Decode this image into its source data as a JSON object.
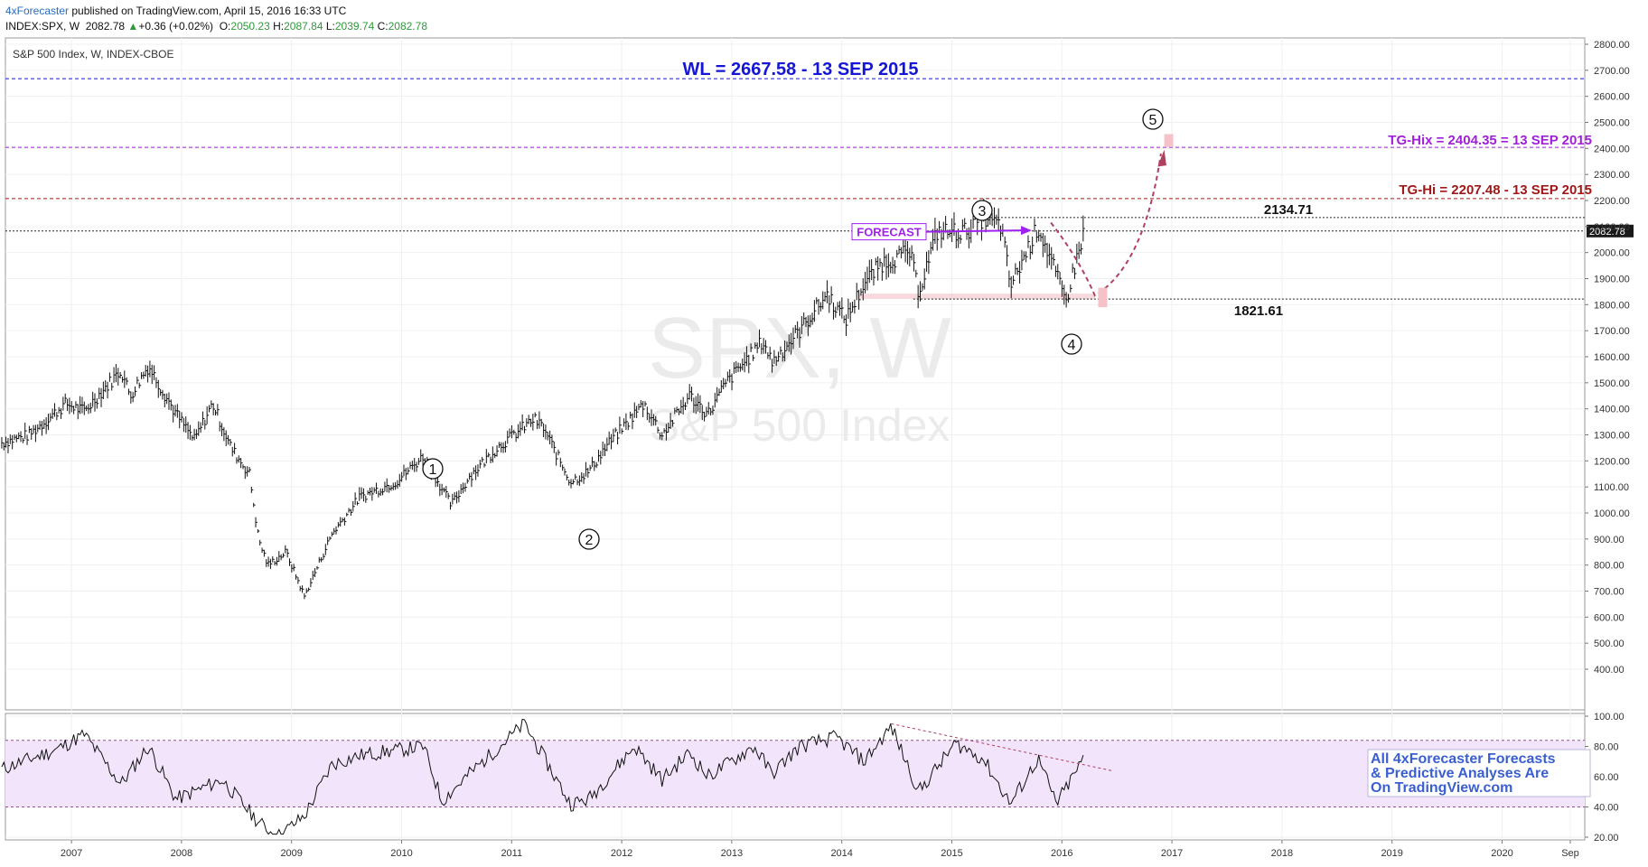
{
  "header": {
    "author": "4xForecaster",
    "published": " published on TradingView.com, April 15, 2016 16:33 UTC",
    "symbol": "INDEX:SPX, W",
    "last": "2082.78",
    "change_arrow": "▲",
    "change": "+0.36 (+0.02%)",
    "o_label": "O:",
    "o_value": "2050.23",
    "h_label": "H:",
    "h_value": "2087.84",
    "l_label": "L:",
    "l_value": "2039.74",
    "c_label": "C:",
    "c_value": "2082.78"
  },
  "legend_title": "S&P 500 Index, W, INDEX-CBOE",
  "watermark": {
    "symbol": "SPX, W",
    "name": "S&P 500 Index"
  },
  "colors": {
    "wl": "#1515d6",
    "tg_hix": "#a020d8",
    "tg_hi": "#a01818",
    "forecast": "#a020f0",
    "rsi_band": "#f2e5fb",
    "projection": "#b04060",
    "target_box": "#f4c2c8",
    "wave": "#111111",
    "promo": "#3a5fd0"
  },
  "levels": [
    {
      "key": "wl",
      "value": 2667.58,
      "label": "WL = 2667.58 - 13 SEP 2015"
    },
    {
      "key": "tg_hix",
      "value": 2404.35,
      "label": "TG-Hix = 2404.35 = 13 SEP 2015"
    },
    {
      "key": "tg_hi",
      "value": 2207.48,
      "label": "TG-Hi = 2207.48 - 13 SEP 2015"
    },
    {
      "key": "high",
      "value": 2134.71,
      "label": "2134.71"
    },
    {
      "key": "low",
      "value": 1821.61,
      "label": "1821.61"
    }
  ],
  "forecast_label": "FORECAST",
  "last_price_tag": "2082.78",
  "waves": [
    {
      "label": "1",
      "date": "2010-04",
      "price": 1219
    },
    {
      "label": "2",
      "date": "2011-10",
      "price": 1075
    },
    {
      "label": "3",
      "date": "2015-05",
      "price": 2134
    },
    {
      "label": "4",
      "date": "2016-02",
      "price": 1810
    },
    {
      "label": "5",
      "date": "2016-12",
      "price": 2450
    }
  ],
  "promo_lines": [
    "All 4xForecaster Forecasts",
    "& Predictive Analyses Are",
    "On TradingView.com"
  ],
  "chart_data": [
    {
      "type": "line",
      "title": "S&P 500 Index, W, INDEX-CBOE",
      "x_axis": [
        "2007",
        "2008",
        "2009",
        "2010",
        "2011",
        "2012",
        "2013",
        "2014",
        "2015",
        "2016",
        "2017",
        "2018",
        "2019",
        "2020",
        "Sep"
      ],
      "ylim": [
        400,
        2800
      ],
      "y_ticks": [
        "2800.00",
        "2700.00",
        "2600.00",
        "2500.00",
        "2400.00",
        "2300.00",
        "2200.00",
        "2100.00",
        "2000.00",
        "1900.00",
        "1800.00",
        "1700.00",
        "1600.00",
        "1500.00",
        "1400.00",
        "1300.00",
        "1200.00",
        "1100.00",
        "1000.00",
        "900.00",
        "800.00",
        "700.00",
        "600.00",
        "500.00",
        "400.00"
      ],
      "series": [
        {
          "x": [
            "2006-06",
            "2006-09",
            "2007-01",
            "2007-03",
            "2007-07",
            "2007-08",
            "2007-10",
            "2008-01",
            "2008-03",
            "2008-05",
            "2008-07",
            "2008-09",
            "2008-10",
            "2008-11",
            "2009-01",
            "2009-03",
            "2009-06",
            "2009-09",
            "2010-01",
            "2010-04",
            "2010-07",
            "2010-09",
            "2010-12",
            "2011-04",
            "2011-05",
            "2011-08",
            "2011-10",
            "2011-12",
            "2012-04",
            "2012-06",
            "2012-09",
            "2012-11",
            "2013-01",
            "2013-05",
            "2013-06",
            "2013-09",
            "2013-12",
            "2014-02",
            "2014-04",
            "2014-06",
            "2014-09",
            "2014-10",
            "2014-12",
            "2015-03",
            "2015-05",
            "2015-07",
            "2015-08",
            "2015-11",
            "2015-12",
            "2016-02",
            "2016-04"
          ],
          "y": [
            1270,
            1300,
            1420,
            1390,
            1550,
            1450,
            1565,
            1380,
            1280,
            1420,
            1250,
            1150,
            900,
            800,
            850,
            680,
            920,
            1060,
            1120,
            1219,
            1030,
            1140,
            1250,
            1360,
            1330,
            1120,
            1160,
            1260,
            1420,
            1300,
            1450,
            1380,
            1500,
            1660,
            1580,
            1700,
            1840,
            1740,
            1880,
            1960,
            2000,
            1850,
            2080,
            2080,
            2134,
            2100,
            1870,
            2100,
            2010,
            1810,
            2082
          ]
        }
      ]
    },
    {
      "type": "line",
      "title": "",
      "ylim": [
        20,
        100
      ],
      "y_ticks": [
        "100.00",
        "80.00",
        "60.00",
        "40.00",
        "20.00"
      ],
      "band": [
        40,
        84
      ],
      "series": [
        {
          "x": [
            "2006-06",
            "2006-12",
            "2007-03",
            "2007-07",
            "2007-10",
            "2008-01",
            "2008-06",
            "2008-10",
            "2008-12",
            "2009-03",
            "2009-06",
            "2009-09",
            "2010-04",
            "2010-06",
            "2010-09",
            "2011-01",
            "2011-03",
            "2011-08",
            "2011-10",
            "2012-03",
            "2012-06",
            "2012-09",
            "2012-11",
            "2013-04",
            "2013-06",
            "2013-09",
            "2014-01",
            "2014-04",
            "2014-07",
            "2014-10",
            "2015-02",
            "2015-05",
            "2015-08",
            "2015-11",
            "2016-01",
            "2016-04"
          ],
          "y": [
            65,
            78,
            88,
            55,
            80,
            45,
            58,
            30,
            20,
            34,
            68,
            74,
            80,
            44,
            62,
            84,
            95,
            42,
            45,
            80,
            58,
            76,
            60,
            80,
            62,
            80,
            86,
            70,
            93,
            50,
            82,
            72,
            42,
            72,
            42,
            72
          ]
        }
      ]
    }
  ]
}
